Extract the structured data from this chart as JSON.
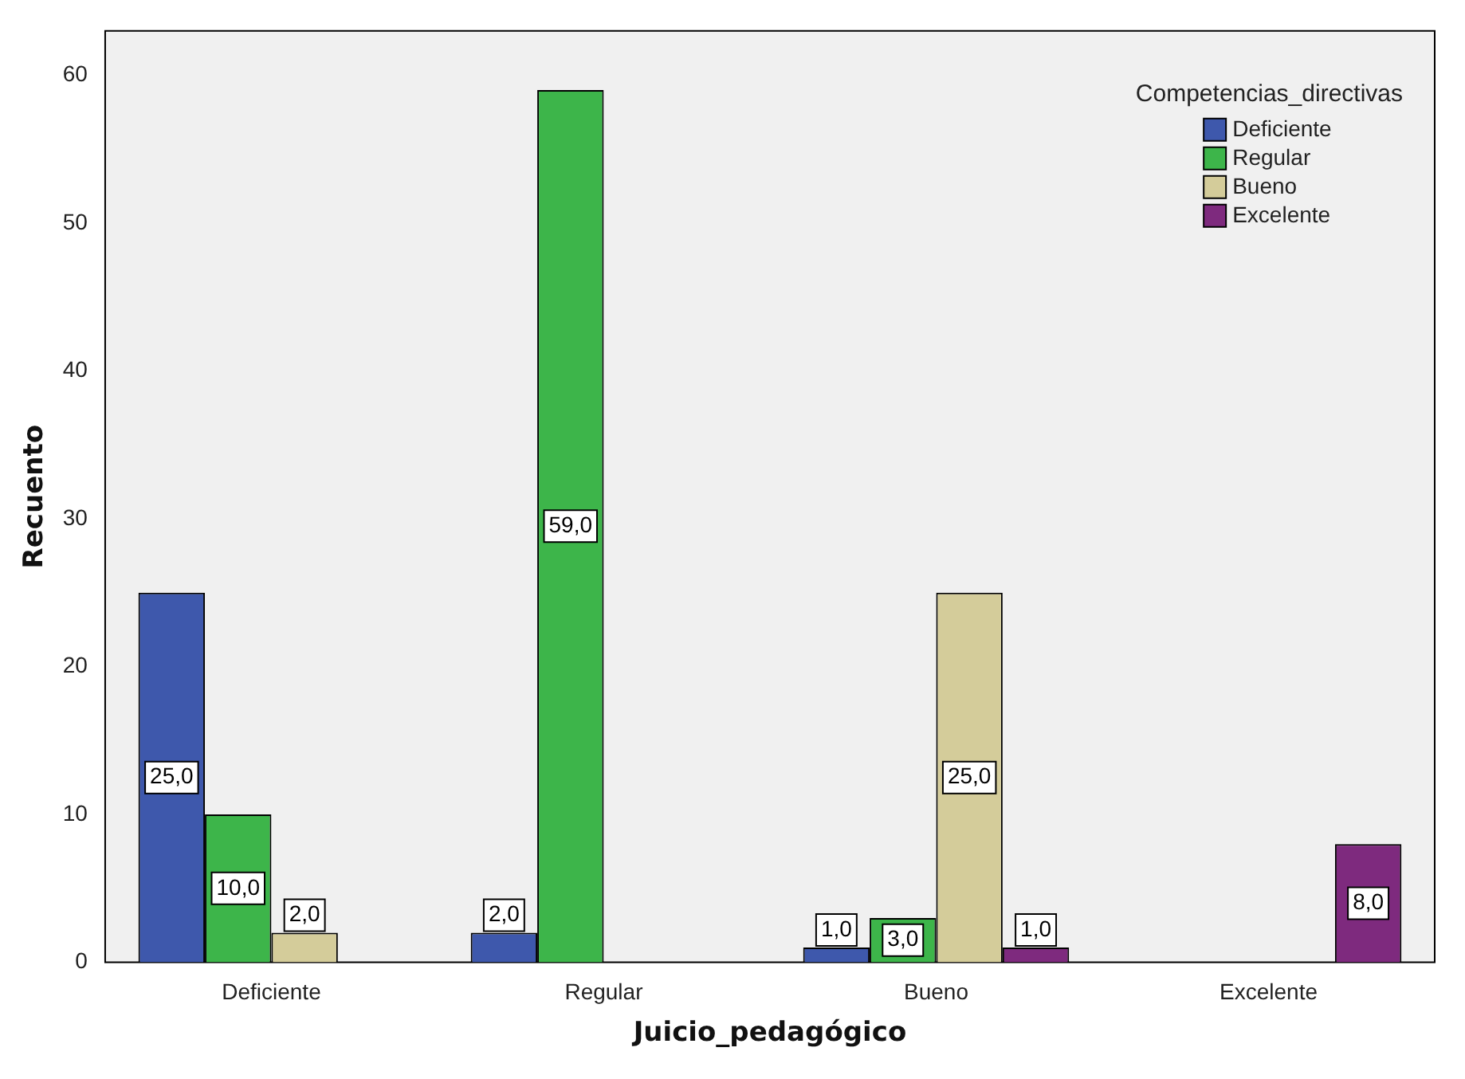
{
  "chart_data": {
    "type": "bar",
    "xlabel": "Juicio_pedagógico",
    "ylabel": "Recuento",
    "legend_title": "Competencias_directivas",
    "categories": [
      "Deficiente",
      "Regular",
      "Bueno",
      "Excelente"
    ],
    "series": [
      {
        "name": "Deficiente",
        "color": "#3e58ac",
        "values": [
          25,
          2,
          1,
          null
        ],
        "value_labels": [
          "25,0",
          "2,0",
          "1,0",
          null
        ]
      },
      {
        "name": "Regular",
        "color": "#3db54a",
        "values": [
          10,
          59,
          3,
          null
        ],
        "value_labels": [
          "10,0",
          "59,0",
          "3,0",
          null
        ]
      },
      {
        "name": "Bueno",
        "color": "#d4cc9a",
        "values": [
          2,
          null,
          25,
          null
        ],
        "value_labels": [
          "2,0",
          null,
          "25,0",
          null
        ]
      },
      {
        "name": "Excelente",
        "color": "#7e2a7e",
        "values": [
          null,
          null,
          1,
          8
        ],
        "value_labels": [
          null,
          null,
          "1,0",
          "8,0"
        ]
      }
    ],
    "ylim": [
      0,
      63
    ],
    "yticks": [
      0,
      10,
      20,
      30,
      40,
      50,
      60
    ],
    "grid": false,
    "legend": "top right"
  }
}
